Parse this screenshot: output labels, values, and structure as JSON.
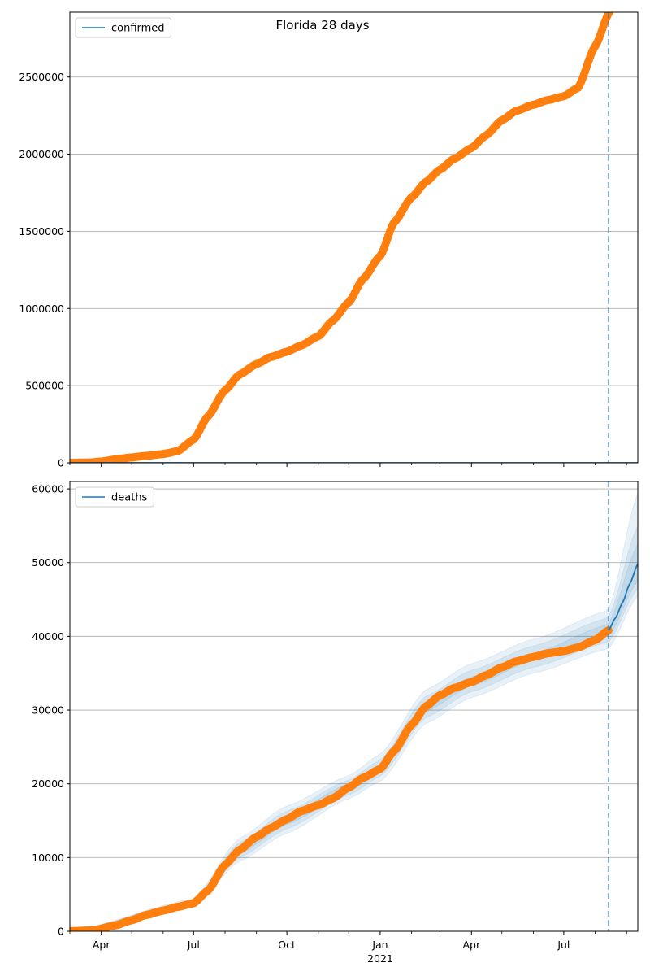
{
  "figure_title": "Florida 28 days",
  "colors": {
    "observed": "#ff7f0e",
    "model": "#1f77b4",
    "band": "#1f77b4",
    "grid": "#b0b0b0",
    "vline": "#1f77b4"
  },
  "chart_data": [
    {
      "type": "scatter",
      "legend_label": "confirmed",
      "legend_position": "top-left",
      "grid": true,
      "ylim": [
        0,
        2920000
      ],
      "yticks": [
        0,
        500000,
        1000000,
        1500000,
        2000000,
        2500000
      ],
      "ytick_labels": [
        "0",
        "500000",
        "1000000",
        "1500000",
        "2000000",
        "2500000"
      ],
      "x_range": [
        "2020-03-01",
        "2021-09-12"
      ],
      "forecast_start": "2021-08-14",
      "observed": {
        "x": [
          "2020-03-01",
          "2020-03-20",
          "2020-04-01",
          "2020-04-15",
          "2020-05-01",
          "2020-05-15",
          "2020-06-01",
          "2020-06-15",
          "2020-07-01",
          "2020-07-15",
          "2020-08-01",
          "2020-08-15",
          "2020-09-01",
          "2020-09-15",
          "2020-10-01",
          "2020-10-15",
          "2020-11-01",
          "2020-11-15",
          "2020-12-01",
          "2020-12-15",
          "2021-01-01",
          "2021-01-15",
          "2021-02-01",
          "2021-02-15",
          "2021-03-01",
          "2021-03-15",
          "2021-04-01",
          "2021-04-15",
          "2021-05-01",
          "2021-05-15",
          "2021-06-01",
          "2021-06-15",
          "2021-07-01",
          "2021-07-15",
          "2021-08-01",
          "2021-08-15"
        ],
        "y": [
          0,
          2000,
          8000,
          22000,
          35000,
          45000,
          57000,
          75000,
          150000,
          300000,
          470000,
          570000,
          640000,
          685000,
          720000,
          760000,
          820000,
          920000,
          1040000,
          1190000,
          1340000,
          1560000,
          1720000,
          1820000,
          1900000,
          1970000,
          2040000,
          2120000,
          2220000,
          2280000,
          2320000,
          2350000,
          2375000,
          2430000,
          2700000,
          2920000
        ]
      },
      "model": {
        "x": [
          "2020-03-01",
          "2021-09-12"
        ],
        "y": [
          0,
          0
        ]
      }
    },
    {
      "type": "scatter",
      "legend_label": "deaths",
      "legend_position": "top-left",
      "grid": true,
      "ylim": [
        0,
        61000
      ],
      "yticks": [
        0,
        10000,
        20000,
        30000,
        40000,
        50000,
        60000
      ],
      "ytick_labels": [
        "0",
        "10000",
        "20000",
        "30000",
        "40000",
        "50000",
        "60000"
      ],
      "x_range": [
        "2020-03-01",
        "2021-09-12"
      ],
      "forecast_start": "2021-08-14",
      "observed": {
        "x": [
          "2020-03-01",
          "2020-03-25",
          "2020-04-15",
          "2020-05-01",
          "2020-05-15",
          "2020-06-01",
          "2020-06-15",
          "2020-07-01",
          "2020-07-15",
          "2020-08-01",
          "2020-08-15",
          "2020-09-01",
          "2020-09-15",
          "2020-10-01",
          "2020-10-15",
          "2020-11-01",
          "2020-11-15",
          "2020-12-01",
          "2020-12-15",
          "2021-01-01",
          "2021-01-15",
          "2021-02-01",
          "2021-02-15",
          "2021-03-01",
          "2021-03-15",
          "2021-04-01",
          "2021-04-15",
          "2021-05-01",
          "2021-05-15",
          "2021-06-01",
          "2021-06-15",
          "2021-07-01",
          "2021-07-15",
          "2021-08-01",
          "2021-08-14"
        ],
        "y": [
          0,
          150,
          800,
          1500,
          2200,
          2800,
          3300,
          3800,
          5500,
          9000,
          11000,
          12800,
          14000,
          15200,
          16300,
          17100,
          18000,
          19500,
          20800,
          22000,
          24500,
          28000,
          30500,
          32000,
          33000,
          33800,
          34700,
          35800,
          36600,
          37200,
          37700,
          38000,
          38500,
          39500,
          40800
        ]
      },
      "model": {
        "x": [
          "2021-08-14",
          "2021-08-21",
          "2021-08-28",
          "2021-09-04",
          "2021-09-12"
        ],
        "y": [
          40800,
          42500,
          44600,
          47100,
          49800
        ]
      },
      "bands": [
        {
          "name": "inner",
          "x": [
            "2020-03-01",
            "2020-07-01",
            "2020-08-15",
            "2020-10-01",
            "2020-12-01",
            "2021-01-01",
            "2021-02-15",
            "2021-04-01",
            "2021-06-01",
            "2021-08-14",
            "2021-09-12"
          ],
          "lower": [
            0,
            3600,
            10500,
            14500,
            19000,
            21500,
            29800,
            33300,
            36700,
            40000,
            47500
          ],
          "upper": [
            0,
            4000,
            11500,
            15700,
            20000,
            22500,
            31000,
            34500,
            37700,
            41600,
            52500
          ]
        },
        {
          "name": "middle",
          "x": [
            "2020-03-01",
            "2020-07-01",
            "2020-08-15",
            "2020-10-01",
            "2020-12-01",
            "2021-01-01",
            "2021-02-15",
            "2021-04-01",
            "2021-06-01",
            "2021-08-14",
            "2021-09-12"
          ],
          "lower": [
            0,
            3400,
            10000,
            13900,
            18500,
            21000,
            29000,
            32500,
            35800,
            39200,
            46500
          ],
          "upper": [
            0,
            4200,
            12000,
            16300,
            20500,
            23200,
            31900,
            35400,
            38700,
            42500,
            55000
          ]
        },
        {
          "name": "outer",
          "x": [
            "2020-03-01",
            "2020-07-01",
            "2020-08-15",
            "2020-10-01",
            "2020-12-01",
            "2021-01-01",
            "2021-02-15",
            "2021-04-01",
            "2021-06-01",
            "2021-08-14",
            "2021-09-12"
          ],
          "lower": [
            0,
            3200,
            9500,
            13300,
            18000,
            20300,
            28200,
            31700,
            35000,
            38300,
            45500
          ],
          "upper": [
            0,
            4400,
            12600,
            17000,
            21100,
            24000,
            32800,
            36300,
            39600,
            43500,
            59500
          ]
        }
      ]
    }
  ],
  "x_axis": {
    "tick_labels": [
      "Apr",
      "Jul",
      "Oct",
      "Jan",
      "Apr",
      "Jul"
    ],
    "tick_dates": [
      "2020-04-01",
      "2020-07-01",
      "2020-10-01",
      "2021-01-01",
      "2021-04-01",
      "2021-07-01"
    ],
    "year_label": "2021",
    "year_label_date": "2021-01-01",
    "minor_tick_dates": [
      "2020-03-01",
      "2020-05-01",
      "2020-06-01",
      "2020-08-01",
      "2020-09-01",
      "2020-11-01",
      "2020-12-01",
      "2021-02-01",
      "2021-03-01",
      "2021-05-01",
      "2021-06-01",
      "2021-08-01",
      "2021-09-01"
    ]
  }
}
